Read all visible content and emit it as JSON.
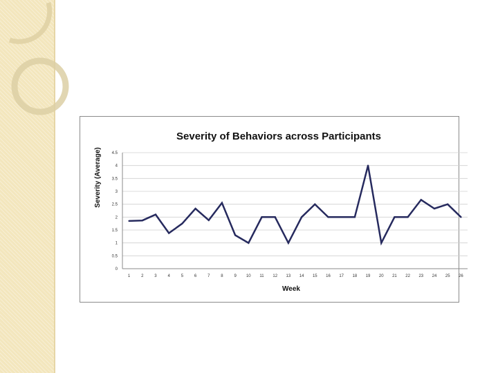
{
  "slide": {
    "accent_color": "#f3e6bd",
    "ring_color": "#ddd0a6",
    "deco_icons": [
      "ring-arc-icon",
      "circle-ring-icon"
    ]
  },
  "chart_data": {
    "type": "line",
    "title": "Severity of Behaviors across Participants",
    "xlabel": "Week",
    "ylabel": "Severity (Average)",
    "x": [
      1,
      2,
      3,
      4,
      5,
      6,
      7,
      8,
      9,
      10,
      11,
      12,
      13,
      14,
      15,
      16,
      17,
      18,
      19,
      20,
      21,
      22,
      23,
      24,
      25,
      26
    ],
    "x_tick_labels": [
      "1",
      "2",
      "3",
      "4",
      "5",
      "6",
      "7",
      "8",
      "9",
      "10",
      "11",
      "12",
      "13",
      "14",
      "15",
      "16",
      "17",
      "18",
      "19",
      "20",
      "21",
      "22",
      "23",
      "24",
      "25",
      "26"
    ],
    "y_tick_labels": [
      "0",
      "0.5",
      "1",
      "1.5",
      "2",
      "2.5",
      "3",
      "3.5",
      "4",
      "4.5"
    ],
    "ylim": [
      0,
      4.5
    ],
    "y_ticks": [
      0,
      0.5,
      1,
      1.5,
      2,
      2.5,
      3,
      3.5,
      4,
      4.5
    ],
    "grid": true,
    "series": [
      {
        "name": "Severity",
        "color": "#262a5e",
        "values": [
          1.85,
          1.87,
          2.1,
          1.38,
          1.75,
          2.33,
          1.88,
          2.55,
          1.3,
          1.0,
          2.0,
          2.0,
          1.0,
          2.0,
          2.5,
          2.0,
          2.0,
          2.0,
          4.0,
          1.0,
          2.0,
          2.0,
          2.67,
          2.33,
          2.5,
          2.0
        ]
      }
    ]
  }
}
